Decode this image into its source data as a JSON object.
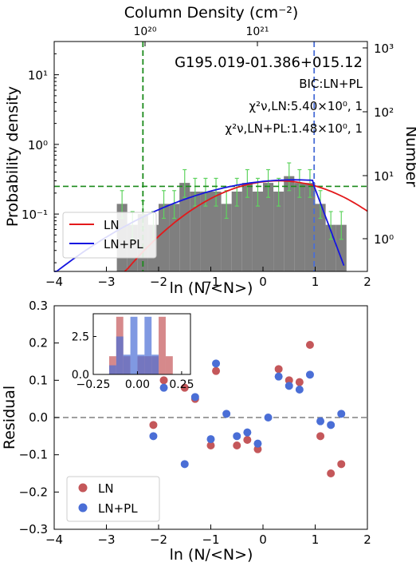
{
  "chart_data": [
    {
      "type": "bar",
      "panel": "top",
      "title": "G195.019-01.386+015.12",
      "xlabel": "ln (N/<N>)",
      "ylabel": "Probability density",
      "ylabel_right": "Number",
      "xlabel_top": "Column Density (cm⁻²)",
      "xlim": [
        -4,
        2
      ],
      "ylim_log": [
        0.015,
        30
      ],
      "y_scale": "log",
      "x_ticks": [
        "−4",
        "−3",
        "−2",
        "−1",
        "0",
        "1",
        "2"
      ],
      "y_ticks": [
        "10⁻¹",
        "10⁰",
        "10¹"
      ],
      "right_ticks": [
        "10⁰",
        "10¹",
        "10²",
        "10³"
      ],
      "top_ticks": [
        "10²⁰",
        "10²¹"
      ],
      "annotations": [
        "BIC:LN+PL",
        "χ²ν,LN:5.40×10⁰, 1",
        "χ²ν,LN+PL:1.48×10⁰, 1"
      ],
      "histogram_bin_width": 0.2,
      "histogram": [
        {
          "x": -2.7,
          "y": 0.14
        },
        {
          "x": -2.5,
          "y": 0.07
        },
        {
          "x": -2.3,
          "y": 0.1
        },
        {
          "x": -2.1,
          "y": 0.07
        },
        {
          "x": -1.9,
          "y": 0.14
        },
        {
          "x": -1.7,
          "y": 0.14
        },
        {
          "x": -1.5,
          "y": 0.28
        },
        {
          "x": -1.3,
          "y": 0.21
        },
        {
          "x": -1.1,
          "y": 0.21
        },
        {
          "x": -0.9,
          "y": 0.21
        },
        {
          "x": -0.7,
          "y": 0.14
        },
        {
          "x": -0.5,
          "y": 0.21
        },
        {
          "x": -0.3,
          "y": 0.28
        },
        {
          "x": -0.1,
          "y": 0.21
        },
        {
          "x": 0.1,
          "y": 0.28
        },
        {
          "x": 0.3,
          "y": 0.21
        },
        {
          "x": 0.5,
          "y": 0.35
        },
        {
          "x": 0.7,
          "y": 0.28
        },
        {
          "x": 0.9,
          "y": 0.28
        },
        {
          "x": 1.1,
          "y": 0.14
        },
        {
          "x": 1.3,
          "y": 0.07
        },
        {
          "x": 1.5,
          "y": 0.07
        }
      ],
      "vlines": [
        {
          "x": -2.3,
          "color": "#1a8a1a"
        },
        {
          "x": 0.98,
          "color": "#4a6ed6"
        }
      ],
      "hline": {
        "y": 0.25,
        "color": "#1a8a1a"
      },
      "series": [
        {
          "name": "LN",
          "color": "#e3191b"
        },
        {
          "name": "LN+PL",
          "color": "#1515e0"
        }
      ],
      "legend_position": "lower-left"
    },
    {
      "type": "scatter",
      "panel": "bottom",
      "xlabel": "ln (N/<N>)",
      "ylabel": "Residual",
      "xlim": [
        -4,
        2
      ],
      "ylim": [
        -0.3,
        0.3
      ],
      "x_ticks": [
        "−4",
        "−3",
        "−2",
        "−1",
        "0",
        "1",
        "2"
      ],
      "y_ticks": [
        "−0.3",
        "−0.2",
        "−0.1",
        "0.0",
        "0.1",
        "0.2",
        "0.3"
      ],
      "hline": {
        "y": 0.0,
        "color": "#808080"
      },
      "legend_position": "lower-left",
      "series": [
        {
          "name": "LN",
          "color": "#c4575a",
          "points": [
            [
              -2.1,
              -0.02
            ],
            [
              -1.9,
              0.1
            ],
            [
              -1.5,
              0.08
            ],
            [
              -1.3,
              0.05
            ],
            [
              -1.0,
              -0.075
            ],
            [
              -0.9,
              0.125
            ],
            [
              -0.5,
              -0.075
            ],
            [
              -0.3,
              -0.06
            ],
            [
              -0.1,
              -0.085
            ],
            [
              0.3,
              0.13
            ],
            [
              0.5,
              0.1
            ],
            [
              0.7,
              0.095
            ],
            [
              0.9,
              0.195
            ],
            [
              1.1,
              -0.05
            ],
            [
              1.3,
              -0.15
            ],
            [
              1.5,
              -0.125
            ]
          ]
        },
        {
          "name": "LN+PL",
          "color": "#4a6ed6",
          "points": [
            [
              -2.1,
              -0.05
            ],
            [
              -1.9,
              0.08
            ],
            [
              -1.5,
              -0.125
            ],
            [
              -1.3,
              0.055
            ],
            [
              -1.0,
              -0.058
            ],
            [
              -0.9,
              0.145
            ],
            [
              -0.7,
              0.01
            ],
            [
              -0.5,
              -0.05
            ],
            [
              -0.3,
              -0.04
            ],
            [
              -0.1,
              -0.07
            ],
            [
              0.1,
              0.0
            ],
            [
              0.3,
              0.11
            ],
            [
              0.5,
              0.085
            ],
            [
              0.7,
              0.075
            ],
            [
              0.9,
              0.115
            ],
            [
              1.1,
              -0.01
            ],
            [
              1.3,
              -0.02
            ],
            [
              1.5,
              0.01
            ]
          ]
        }
      ],
      "inset": {
        "type": "histogram",
        "xlim": [
          -0.25,
          0.3
        ],
        "ylim": [
          0,
          4
        ],
        "x_ticks": [
          "−0.25",
          "0.00",
          "0.25"
        ],
        "y_ticks": [
          "0.0",
          "2.5"
        ],
        "bin_width": 0.04,
        "series": [
          {
            "name": "LN",
            "color": "#c4575a",
            "bins": [
              {
                "x": -0.14,
                "y": 1.2
              },
              {
                "x": -0.1,
                "y": 3.8
              },
              {
                "x": -0.06,
                "y": 1.2
              },
              {
                "x": 0.02,
                "y": 1.2
              },
              {
                "x": 0.06,
                "y": 1.2
              },
              {
                "x": 0.1,
                "y": 1.2
              },
              {
                "x": 0.14,
                "y": 3.8
              },
              {
                "x": 0.18,
                "y": 1.2
              }
            ]
          },
          {
            "name": "LN+PL",
            "color": "#4a6ed6",
            "bins": [
              {
                "x": -0.14,
                "y": 0.6
              },
              {
                "x": -0.1,
                "y": 2.5
              },
              {
                "x": -0.06,
                "y": 1.3
              },
              {
                "x": -0.02,
                "y": 3.8
              },
              {
                "x": 0.02,
                "y": 1.3
              },
              {
                "x": 0.06,
                "y": 3.8
              },
              {
                "x": 0.1,
                "y": 1.3
              }
            ]
          }
        ]
      }
    }
  ]
}
